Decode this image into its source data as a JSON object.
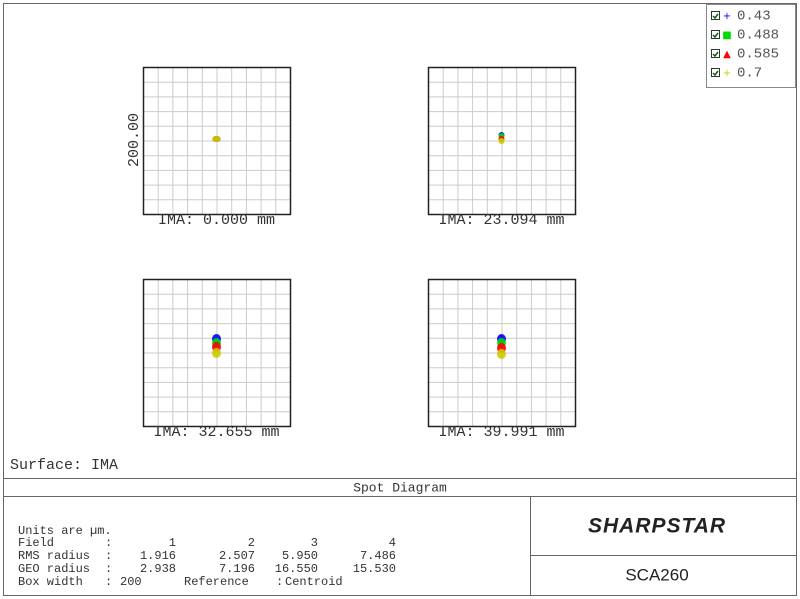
{
  "legend": [
    {
      "label": "0.43"
    },
    {
      "label": "0.488"
    },
    {
      "label": "0.585"
    },
    {
      "label": "0.7"
    }
  ],
  "scale_label": "200.00",
  "fields": [
    {
      "label": "IMA: 0.000 mm"
    },
    {
      "label": "IMA: 23.094 mm"
    },
    {
      "label": "IMA: 32.655 mm"
    },
    {
      "label": "IMA: 39.991 mm"
    }
  ],
  "surface": "Surface: IMA",
  "title": "Spot Diagram",
  "table": {
    "note": "Units are µm.",
    "separator": ":",
    "rows": [
      {
        "label": "Field",
        "values": [
          "1",
          "2",
          "3",
          "4"
        ]
      },
      {
        "label": "RMS radius",
        "values": [
          "1.916",
          "2.507",
          "5.950",
          "7.486"
        ]
      },
      {
        "label": "GEO radius",
        "values": [
          "2.938",
          "7.196",
          "16.550",
          "15.530"
        ]
      }
    ],
    "box_width": {
      "label": "Box width",
      "value": "200",
      "ref_label": "Reference",
      "ref_value": "Centroid"
    }
  },
  "brand": "SHARPSTAR",
  "model": "SCA260"
}
